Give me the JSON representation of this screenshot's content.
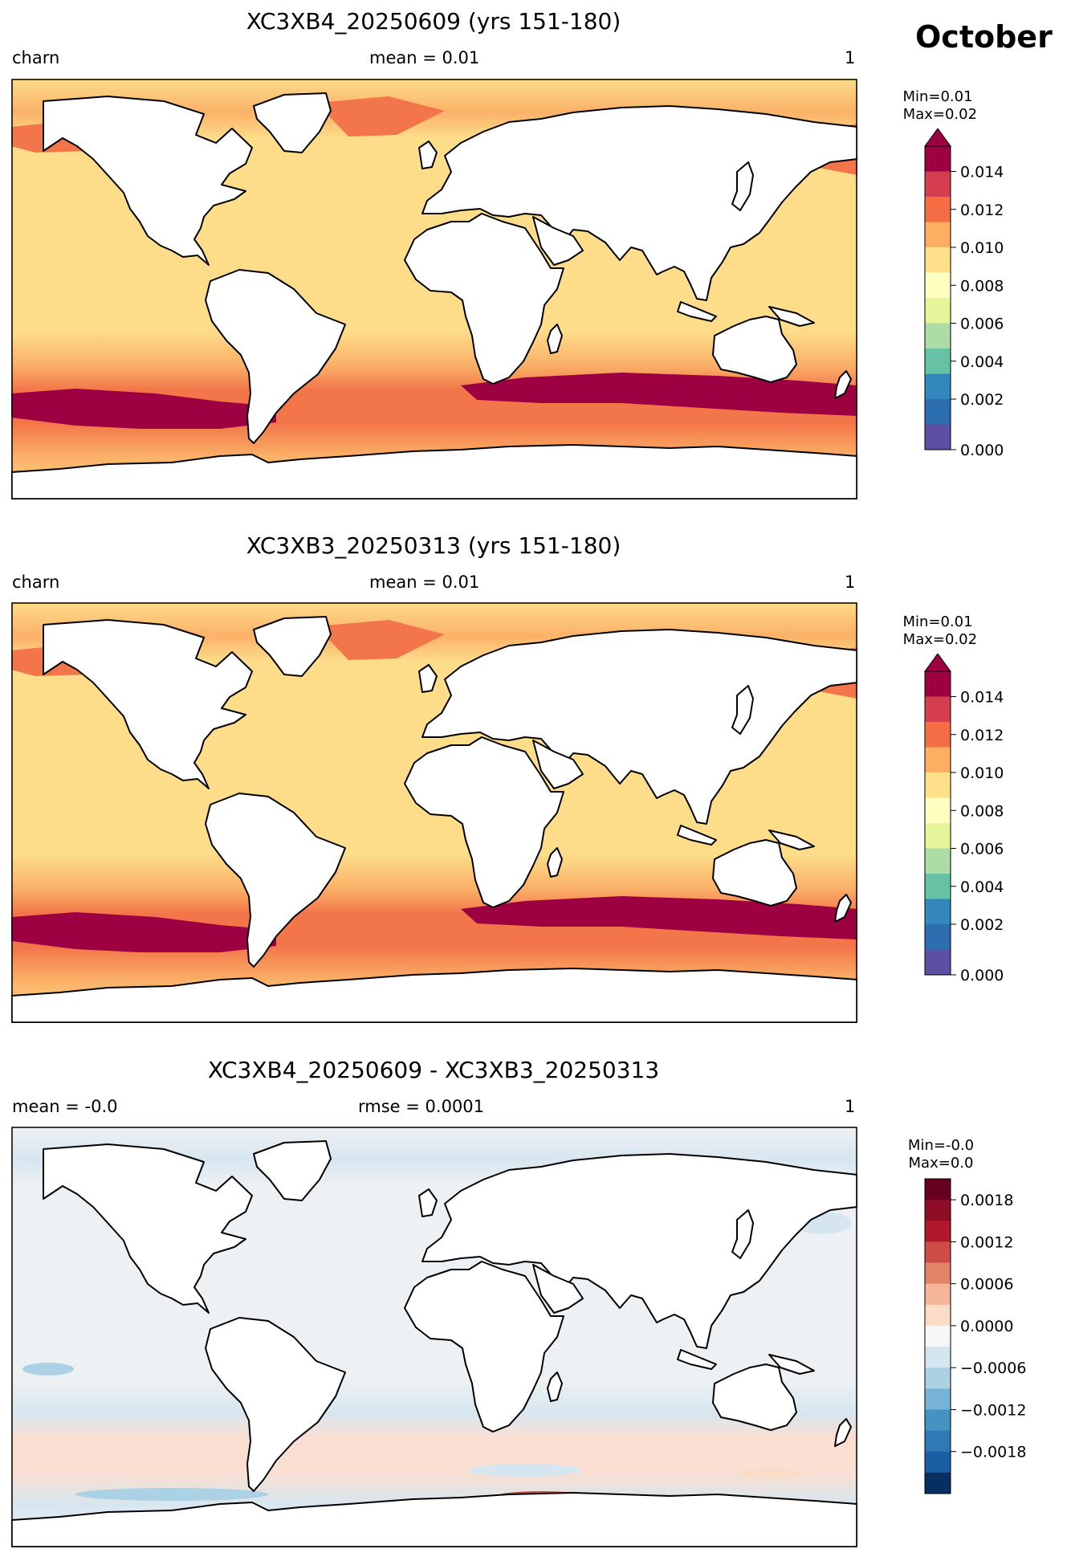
{
  "month": "October",
  "panels": [
    {
      "id": "p1",
      "title": "XC3XB4_20250609 (yrs 151-180)",
      "left_label": "charn",
      "center_label": "mean = 0.01",
      "right_label": "1",
      "minmax": "Min=0.01\n Max=0.02",
      "colorbar": {
        "cmap": "Spectral_r",
        "ticks": [
          "0.014",
          "0.012",
          "0.010",
          "0.008",
          "0.006",
          "0.004",
          "0.002",
          "0.000"
        ],
        "extend": "max",
        "colors": [
          "#9e0142",
          "#d53e4f",
          "#f46d43",
          "#fdae61",
          "#fee08b",
          "#ffffbf",
          "#e6f598",
          "#abdda4",
          "#66c2a5",
          "#3288bd",
          "#2c6fb0",
          "#5e4fa2"
        ]
      },
      "field_colors": {
        "ocean": "#fddc8a",
        "mid": "#fbb168",
        "high": "#f3764a",
        "max": "#9e0142"
      }
    },
    {
      "id": "p2",
      "title": "XC3XB3_20250313 (yrs 151-180)",
      "left_label": "charn",
      "center_label": "mean = 0.01",
      "right_label": "1",
      "minmax": "Min=0.01\n Max=0.02",
      "colorbar": {
        "cmap": "Spectral_r",
        "ticks": [
          "0.014",
          "0.012",
          "0.010",
          "0.008",
          "0.006",
          "0.004",
          "0.002",
          "0.000"
        ],
        "extend": "max",
        "colors": [
          "#9e0142",
          "#d53e4f",
          "#f46d43",
          "#fdae61",
          "#fee08b",
          "#ffffbf",
          "#e6f598",
          "#abdda4",
          "#66c2a5",
          "#3288bd",
          "#2c6fb0",
          "#5e4fa2"
        ]
      },
      "field_colors": {
        "ocean": "#fddc8a",
        "mid": "#fbb168",
        "high": "#f3764a",
        "max": "#9e0142"
      }
    },
    {
      "id": "p3",
      "title": "XC3XB4_20250609 - XC3XB3_20250313",
      "left_label": "mean = -0.0",
      "center_label": "rmse = 0.0001",
      "right_label": "1",
      "minmax": "Min=-0.0\nMax=0.0",
      "colorbar": {
        "cmap": "RdBu_r",
        "ticks": [
          "0.0018",
          "0.0012",
          "0.0006",
          "0.0000",
          "−0.0006",
          "−0.0012",
          "−0.0018"
        ],
        "extend": "neither",
        "colors": [
          "#67001f",
          "#8e0c25",
          "#b2182b",
          "#cd4c44",
          "#e38467",
          "#f4b599",
          "#fbdcc8",
          "#f7f7f7",
          "#d5e6f0",
          "#abd1e5",
          "#76b4d5",
          "#4393c3",
          "#2f79b5",
          "#195ea3",
          "#053061"
        ]
      },
      "field_colors": {
        "ocean": "#eef1f3",
        "mid": "#d7e6f0",
        "high": "#fadfd2",
        "max": "#b2182b"
      }
    }
  ]
}
